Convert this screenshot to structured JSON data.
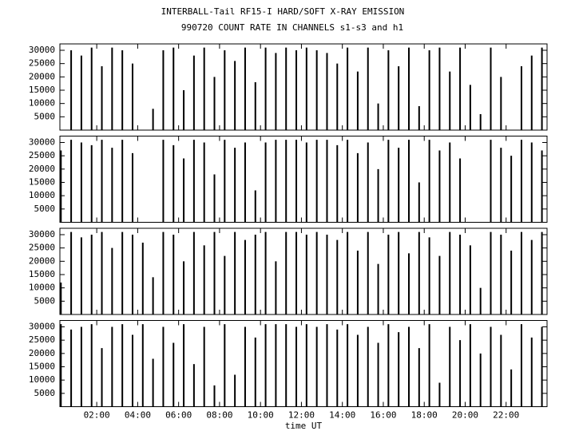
{
  "chart_data": [
    {
      "type": "bar",
      "title": "INTERBALL-Tail RF15-I HARD/SOFT X-RAY EMISSION",
      "subtitle": "990720  COUNT RATE IN CHANNELS s1-s3 and h1",
      "color": "#000000",
      "x": [
        0.25,
        0.75,
        1.25,
        1.75,
        2.25,
        2.75,
        3.25,
        3.75,
        4.25,
        4.75,
        5.25,
        5.75,
        6.25,
        6.75,
        7.25,
        7.75,
        8.25,
        8.75,
        9.25,
        9.75,
        10.25,
        10.75,
        11.25,
        11.75,
        12.25,
        12.75,
        13.25,
        13.75,
        14.25,
        14.75,
        15.25,
        15.75,
        16.25,
        16.75,
        17.25,
        17.75,
        18.25,
        18.75,
        19.25,
        19.75,
        20.25,
        20.75,
        21.25,
        21.75,
        22.25,
        22.75,
        23.25,
        23.75
      ],
      "values": [
        0,
        30000,
        28000,
        31000,
        24000,
        31000,
        30000,
        25000,
        0,
        8000,
        30000,
        31000,
        15000,
        28000,
        31000,
        20000,
        30000,
        26000,
        31000,
        18000,
        31000,
        29000,
        31000,
        30000,
        31000,
        30000,
        29000,
        25000,
        31000,
        22000,
        31000,
        10000,
        30000,
        24000,
        31000,
        9000,
        30000,
        31000,
        22000,
        31000,
        17000,
        6000,
        31000,
        20000,
        0,
        24000,
        28000,
        31000
      ],
      "xlim": [
        0.2,
        24
      ],
      "ylim": [
        0,
        32400
      ],
      "yticks": [
        5000,
        10000,
        15000,
        20000,
        25000,
        30000
      ]
    },
    {
      "type": "bar",
      "color": "#000000",
      "x": [
        0.25,
        0.75,
        1.25,
        1.75,
        2.25,
        2.75,
        3.25,
        3.75,
        4.25,
        4.75,
        5.25,
        5.75,
        6.25,
        6.75,
        7.25,
        7.75,
        8.25,
        8.75,
        9.25,
        9.75,
        10.25,
        10.75,
        11.25,
        11.75,
        12.25,
        12.75,
        13.25,
        13.75,
        14.25,
        14.75,
        15.25,
        15.75,
        16.25,
        16.75,
        17.25,
        17.75,
        18.25,
        18.75,
        19.25,
        19.75,
        20.25,
        20.75,
        21.25,
        21.75,
        22.25,
        22.75,
        23.25,
        23.75
      ],
      "values": [
        27000,
        31000,
        30000,
        29000,
        31000,
        28000,
        31000,
        26000,
        0,
        0,
        31000,
        29000,
        24000,
        31000,
        30000,
        18000,
        31000,
        28000,
        30000,
        12000,
        30000,
        31000,
        31000,
        31000,
        30000,
        31000,
        31000,
        29000,
        31000,
        26000,
        30000,
        20000,
        31000,
        28000,
        31000,
        15000,
        31000,
        27000,
        30000,
        24000,
        0,
        0,
        31000,
        28000,
        25000,
        31000,
        30000,
        27000
      ],
      "xlim": [
        0.2,
        24
      ],
      "ylim": [
        0,
        32400
      ],
      "yticks": [
        5000,
        10000,
        15000,
        20000,
        25000,
        30000
      ]
    },
    {
      "type": "bar",
      "color": "#000000",
      "x": [
        0.25,
        0.75,
        1.25,
        1.75,
        2.25,
        2.75,
        3.25,
        3.75,
        4.25,
        4.75,
        5.25,
        5.75,
        6.25,
        6.75,
        7.25,
        7.75,
        8.25,
        8.75,
        9.25,
        9.75,
        10.25,
        10.75,
        11.25,
        11.75,
        12.25,
        12.75,
        13.25,
        13.75,
        14.25,
        14.75,
        15.25,
        15.75,
        16.25,
        16.75,
        17.25,
        17.75,
        18.25,
        18.75,
        19.25,
        19.75,
        20.25,
        20.75,
        21.25,
        21.75,
        22.25,
        22.75,
        23.25,
        23.75
      ],
      "values": [
        12000,
        31000,
        29000,
        30000,
        31000,
        25000,
        31000,
        30000,
        27000,
        14000,
        31000,
        30000,
        20000,
        31000,
        26000,
        31000,
        22000,
        31000,
        28000,
        30000,
        31000,
        20000,
        31000,
        31000,
        30000,
        31000,
        30000,
        28000,
        31000,
        24000,
        31000,
        19000,
        30000,
        31000,
        23000,
        31000,
        29000,
        22000,
        31000,
        30000,
        26000,
        10000,
        31000,
        30000,
        24000,
        31000,
        28000,
        31000
      ],
      "xlim": [
        0.2,
        24
      ],
      "ylim": [
        0,
        32400
      ],
      "yticks": [
        5000,
        10000,
        15000,
        20000,
        25000,
        30000
      ]
    },
    {
      "type": "bar",
      "color": "#000000",
      "xlabel": "time UT",
      "x": [
        0.25,
        0.75,
        1.25,
        1.75,
        2.25,
        2.75,
        3.25,
        3.75,
        4.25,
        4.75,
        5.25,
        5.75,
        6.25,
        6.75,
        7.25,
        7.75,
        8.25,
        8.75,
        9.25,
        9.75,
        10.25,
        10.75,
        11.25,
        11.75,
        12.25,
        12.75,
        13.25,
        13.75,
        14.25,
        14.75,
        15.25,
        15.75,
        16.25,
        16.75,
        17.25,
        17.75,
        18.25,
        18.75,
        19.25,
        19.75,
        20.25,
        20.75,
        21.25,
        21.75,
        22.25,
        22.75,
        23.25,
        23.75
      ],
      "values": [
        31000,
        29000,
        30000,
        31000,
        22000,
        30000,
        31000,
        27000,
        31000,
        18000,
        30000,
        24000,
        31000,
        16000,
        30000,
        8000,
        31000,
        12000,
        30000,
        26000,
        31000,
        31000,
        31000,
        30000,
        31000,
        30000,
        31000,
        29000,
        31000,
        27000,
        30000,
        24000,
        31000,
        28000,
        30000,
        22000,
        31000,
        9000,
        30000,
        25000,
        31000,
        20000,
        30000,
        27000,
        14000,
        31000,
        26000,
        30000
      ],
      "xlim": [
        0.2,
        24
      ],
      "ylim": [
        0,
        32400
      ],
      "yticks": [
        5000,
        10000,
        15000,
        20000,
        25000,
        30000
      ],
      "xticks": [
        {
          "value": 2,
          "label": "02:00"
        },
        {
          "value": 4,
          "label": "04:00"
        },
        {
          "value": 6,
          "label": "06:00"
        },
        {
          "value": 8,
          "label": "08:00"
        },
        {
          "value": 10,
          "label": "10:00"
        },
        {
          "value": 12,
          "label": "12:00"
        },
        {
          "value": 14,
          "label": "14:00"
        },
        {
          "value": 16,
          "label": "16:00"
        },
        {
          "value": 18,
          "label": "18:00"
        },
        {
          "value": 20,
          "label": "20:00"
        },
        {
          "value": 22,
          "label": "22:00"
        }
      ]
    }
  ]
}
